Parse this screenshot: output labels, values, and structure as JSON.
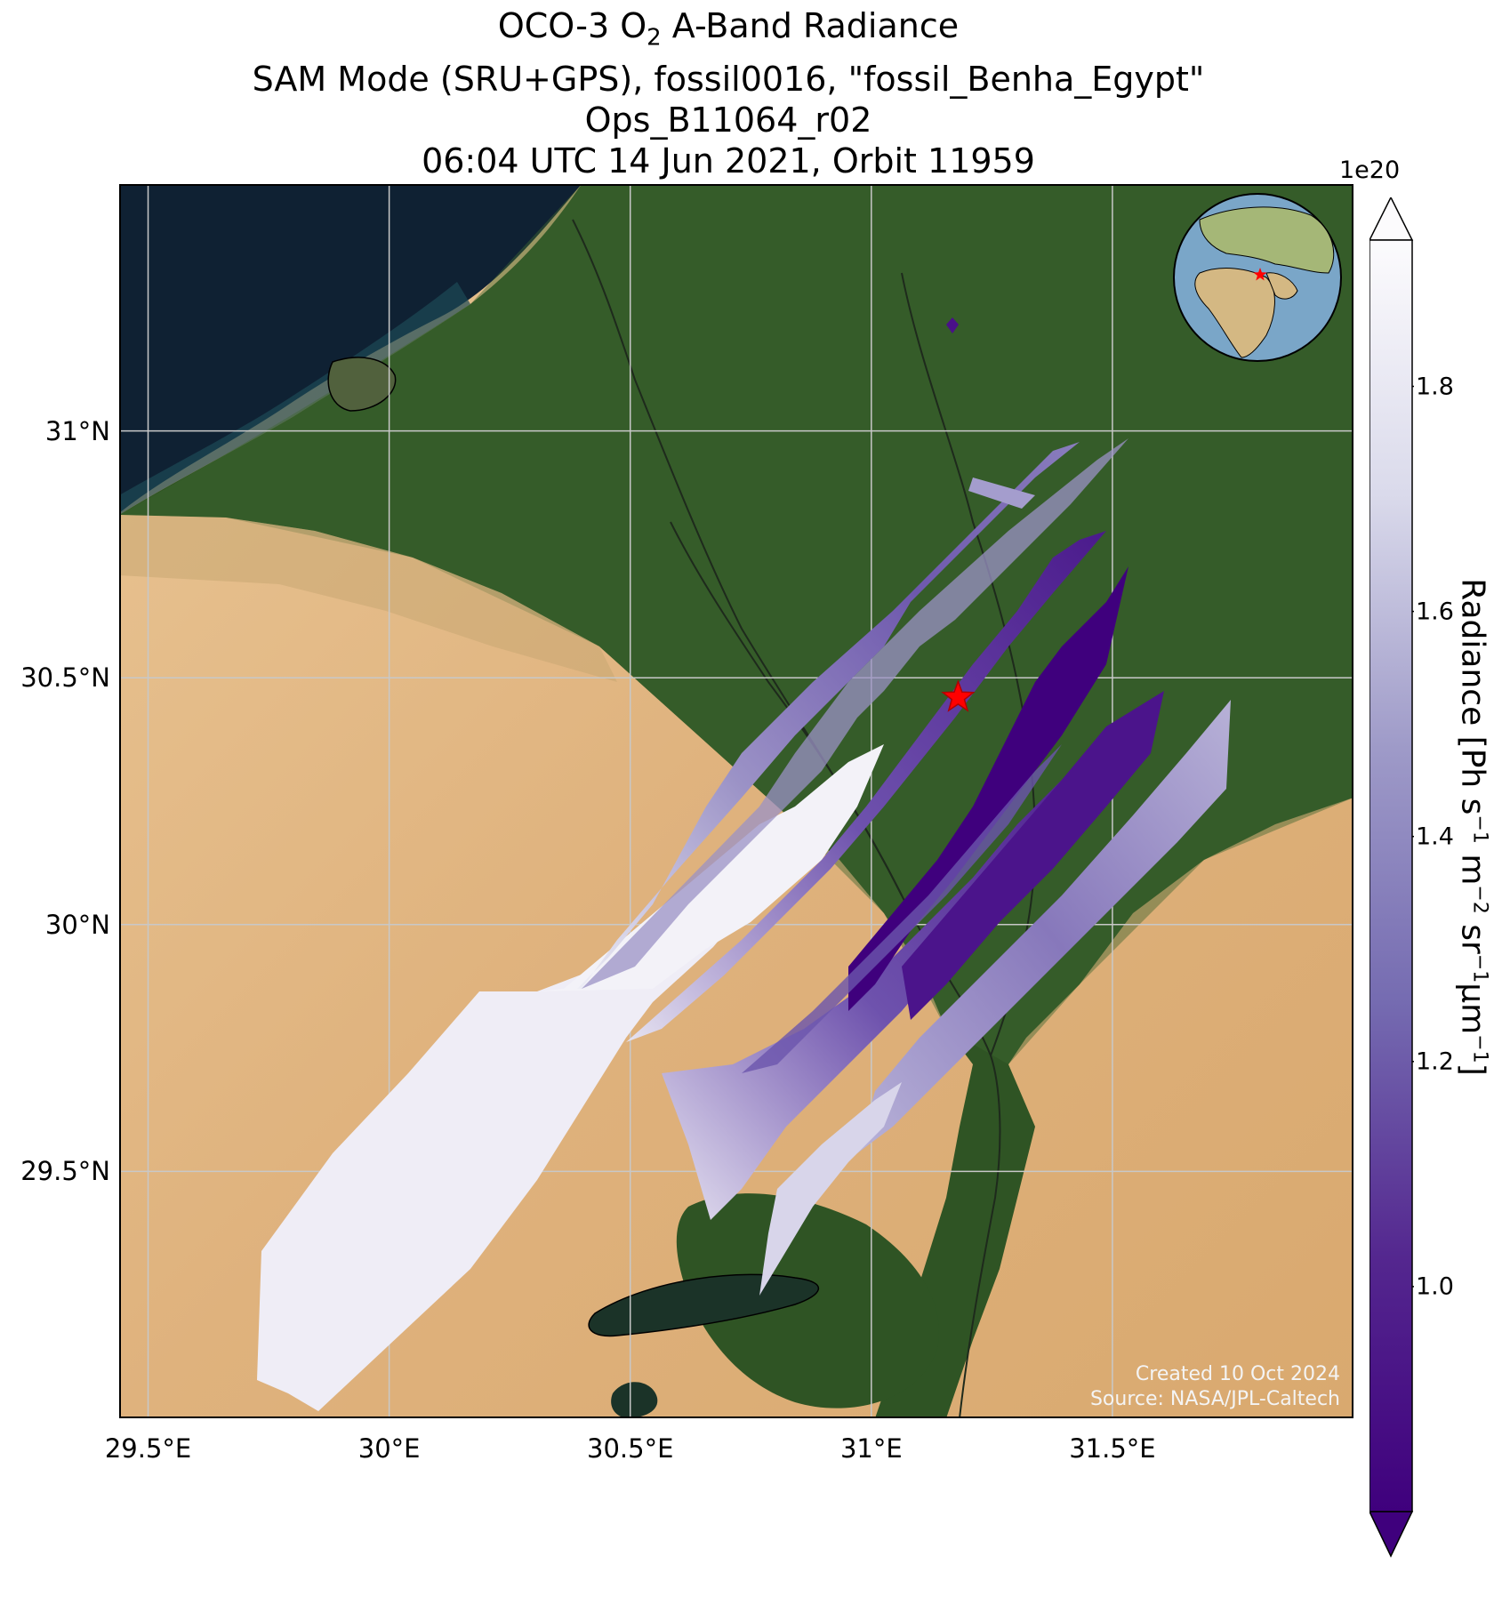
{
  "title": {
    "line1_prefix": "OCO-3 O",
    "line1_sub": "2",
    "line1_suffix": " A-Band Radiance",
    "line2": "SAM Mode (SRU+GPS), fossil0016, \"fossil_Benha_Egypt\"",
    "line3": "Ops_B11064_r02",
    "line4": "06:04 UTC 14 Jun 2021, Orbit 11959"
  },
  "map": {
    "lon_ticks": [
      "29.5°E",
      "30°E",
      "30.5°E",
      "31°E",
      "31.5°E"
    ],
    "lat_ticks": [
      "31°N",
      "30.5°N",
      "30°N",
      "29.5°N"
    ],
    "lon_range": [
      29.44,
      32.0
    ],
    "lat_range": [
      29.0,
      31.5
    ],
    "target_marker": {
      "lon": 31.18,
      "lat": 30.46,
      "color": "#ff0000",
      "icon": "star"
    },
    "swath_color_low": "#3f007d",
    "swath_color_high": "#fcfbfd",
    "credit_line1": "Created 10 Oct 2024",
    "credit_line2": "Source: NASA/JPL-Caltech"
  },
  "colorbar": {
    "exponent_label": "1e20",
    "ticks": [
      "1.0",
      "1.2",
      "1.4",
      "1.6",
      "1.8"
    ],
    "tick_values": [
      1.0,
      1.2,
      1.4,
      1.6,
      1.8
    ],
    "range": [
      0.8,
      1.93
    ],
    "cmap": "Purples_r",
    "label_prefix": "Radiance [Ph s",
    "label_sup1": "−1",
    "label_mid1": " m",
    "label_sup2": "−2",
    "label_mid2": " sr",
    "label_sup3": "−1",
    "label_mid3": "μm",
    "label_sup4": "−1",
    "label_suffix": "]"
  }
}
